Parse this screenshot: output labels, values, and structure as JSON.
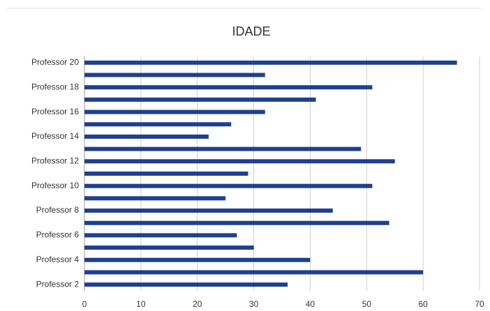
{
  "chart_data": {
    "type": "barh",
    "title": "IDADE",
    "categories": [
      "Professor 2",
      null,
      "Professor 4",
      null,
      "Professor 6",
      null,
      "Professor 8",
      null,
      "Professor 10",
      null,
      "Professor 12",
      null,
      "Professor 14",
      null,
      "Professor 16",
      null,
      "Professor 18",
      null,
      "Professor 20"
    ],
    "values": [
      36,
      60,
      40,
      30,
      27,
      54,
      44,
      25,
      51,
      29,
      55,
      49,
      22,
      26,
      32,
      41,
      51,
      32,
      66
    ],
    "color": "#1f3f8f",
    "xlim": [
      0,
      70
    ],
    "xticks": [
      0,
      10,
      20,
      30,
      40,
      50,
      60,
      70
    ],
    "grid": true
  }
}
